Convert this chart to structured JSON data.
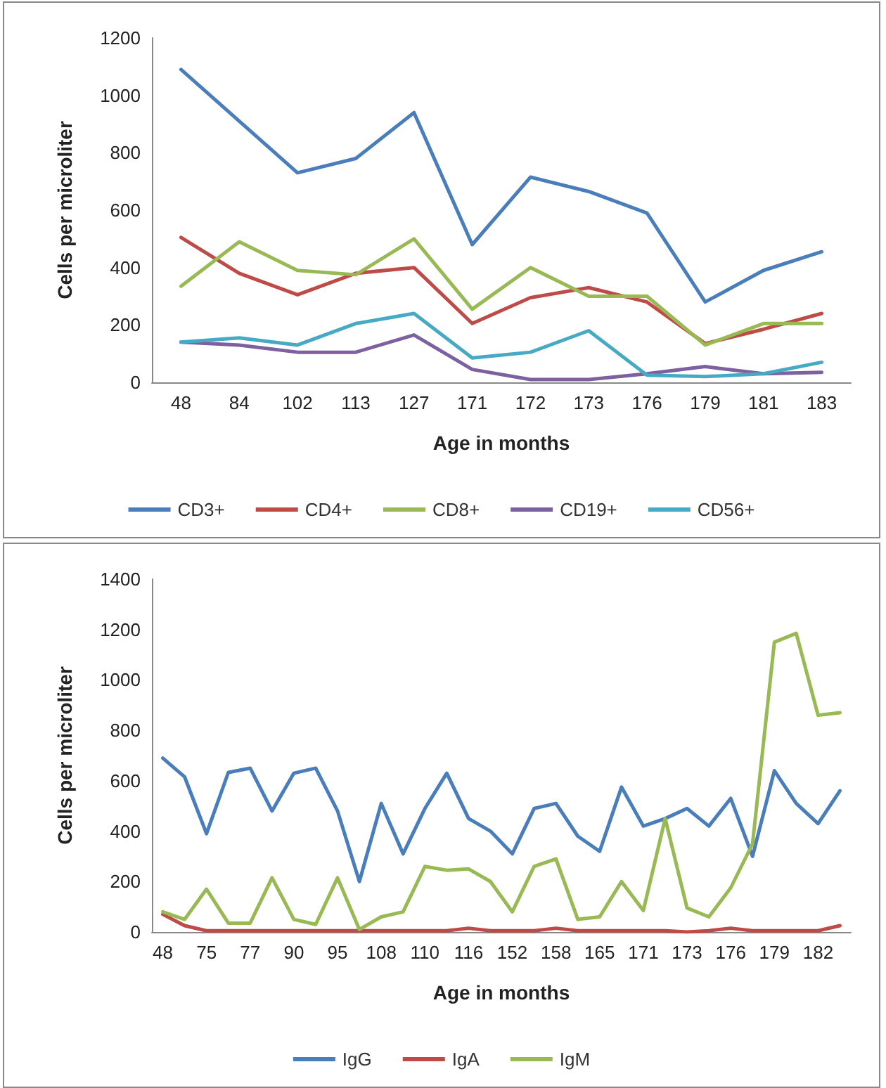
{
  "chart_data": [
    {
      "type": "line",
      "xlabel": "Age in months",
      "ylabel": "Cells per microliter",
      "categories": [
        "48",
        "84",
        "102",
        "113",
        "127",
        "171",
        "172",
        "173",
        "176",
        "179",
        "181",
        "183"
      ],
      "series": [
        {
          "name": "CD3+",
          "color": "#4a7ebb",
          "values": [
            1090,
            910,
            730,
            780,
            940,
            480,
            715,
            665,
            590,
            280,
            390,
            455
          ]
        },
        {
          "name": "CD4+",
          "color": "#be4b48",
          "values": [
            505,
            380,
            305,
            380,
            400,
            205,
            295,
            330,
            280,
            135,
            185,
            240
          ]
        },
        {
          "name": "CD8+",
          "color": "#98b954",
          "values": [
            335,
            490,
            390,
            375,
            500,
            255,
            400,
            300,
            300,
            130,
            205,
            205
          ]
        },
        {
          "name": "CD19+",
          "color": "#7d60a0",
          "values": [
            140,
            130,
            105,
            105,
            165,
            45,
            10,
            10,
            30,
            55,
            30,
            35
          ]
        },
        {
          "name": "CD56+",
          "color": "#46aac5",
          "values": [
            140,
            155,
            130,
            205,
            240,
            85,
            105,
            180,
            25,
            20,
            30,
            70
          ]
        }
      ],
      "ylim": [
        0,
        1200
      ],
      "yticks": [
        0,
        200,
        400,
        600,
        800,
        1000,
        1200
      ],
      "grid": false,
      "legend": "bottom",
      "marker": "none"
    },
    {
      "type": "line",
      "xlabel": "Age in months",
      "ylabel": "Cells per microliter",
      "categories": [
        "48",
        null,
        "75",
        null,
        "77",
        null,
        "90",
        null,
        "95",
        null,
        "108",
        null,
        "110",
        null,
        "116",
        null,
        "152",
        null,
        "158",
        null,
        "165",
        null,
        "171",
        null,
        "173",
        null,
        "176",
        null,
        "179",
        null,
        "182",
        null
      ],
      "series": [
        {
          "name": "IgG",
          "color": "#4a7ebb",
          "values": [
            690,
            615,
            390,
            633,
            650,
            480,
            630,
            650,
            480,
            200,
            510,
            310,
            490,
            630,
            450,
            400,
            310,
            490,
            510,
            380,
            320,
            575,
            420,
            450,
            490,
            420,
            530,
            300,
            640,
            510,
            430,
            560
          ]
        },
        {
          "name": "IgA",
          "color": "#be4b48",
          "values": [
            70,
            25,
            5,
            5,
            5,
            5,
            5,
            5,
            5,
            5,
            5,
            5,
            5,
            5,
            15,
            5,
            5,
            5,
            15,
            5,
            5,
            5,
            5,
            5,
            0,
            5,
            15,
            5,
            5,
            5,
            5,
            25
          ]
        },
        {
          "name": "IgM",
          "color": "#98b954",
          "values": [
            80,
            50,
            170,
            35,
            35,
            215,
            50,
            30,
            215,
            10,
            60,
            80,
            260,
            245,
            250,
            200,
            80,
            260,
            290,
            50,
            60,
            200,
            85,
            450,
            95,
            60,
            175,
            350,
            1150,
            1185,
            860,
            870
          ]
        }
      ],
      "ylim": [
        0,
        1400
      ],
      "yticks": [
        0,
        200,
        400,
        600,
        800,
        1000,
        1200,
        1400
      ],
      "grid": false,
      "legend": "bottom",
      "marker": "none"
    }
  ]
}
